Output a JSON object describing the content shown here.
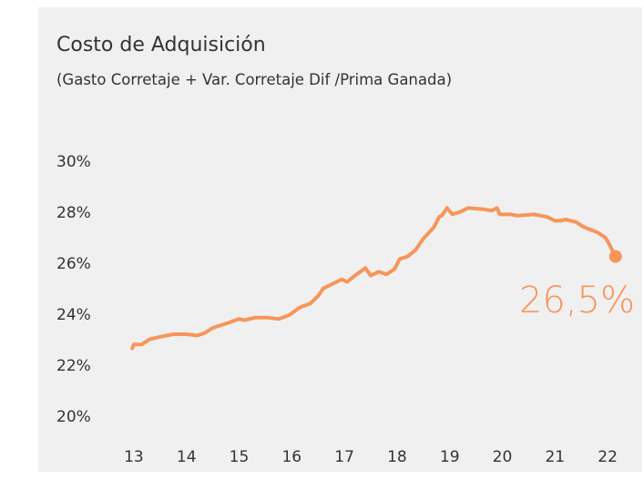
{
  "chart_data": {
    "type": "line",
    "title": "Costo de Adquisición",
    "subtitle": "(Gasto Corretaje + Var. Corretaje Dif /Prima Ganada)",
    "annotation": "26,5%",
    "x": [
      12.97,
      13.0,
      13.15,
      13.3,
      13.5,
      13.75,
      14.0,
      14.2,
      14.35,
      14.5,
      14.8,
      15.0,
      15.1,
      15.3,
      15.55,
      15.75,
      15.95,
      16.15,
      16.35,
      16.5,
      16.6,
      16.8,
      16.95,
      17.05,
      17.2,
      17.4,
      17.5,
      17.65,
      17.8,
      17.95,
      18.05,
      18.2,
      18.35,
      18.5,
      18.7,
      18.8,
      18.85,
      18.95,
      19.05,
      19.2,
      19.35,
      19.65,
      19.8,
      19.9,
      19.95,
      20.15,
      20.3,
      20.6,
      20.85,
      21.0,
      21.1,
      21.2,
      21.4,
      21.55,
      21.8,
      21.95,
      22.0,
      22.15
    ],
    "series": [
      {
        "color": "#f7955a",
        "values": [
          22.7,
          22.85,
          22.85,
          23.05,
          23.15,
          23.25,
          23.25,
          23.2,
          23.3,
          23.5,
          23.7,
          23.85,
          23.8,
          23.9,
          23.9,
          23.85,
          24.0,
          24.3,
          24.45,
          24.75,
          25.05,
          25.25,
          25.4,
          25.3,
          25.55,
          25.85,
          25.55,
          25.7,
          25.6,
          25.8,
          26.2,
          26.3,
          26.55,
          27.0,
          27.45,
          27.85,
          27.9,
          28.2,
          27.95,
          28.05,
          28.2,
          28.15,
          28.1,
          28.2,
          27.95,
          27.95,
          27.9,
          27.95,
          27.85,
          27.7,
          27.7,
          27.75,
          27.65,
          27.45,
          27.25,
          27.05,
          26.9,
          26.3
        ]
      }
    ],
    "xlim": [
      12.5,
      22.5
    ],
    "xticks": [
      13,
      14,
      15,
      16,
      17,
      18,
      19,
      20,
      21,
      22
    ],
    "ylim": [
      19,
      31
    ],
    "yticks": [
      {
        "value": 20,
        "label": "20%"
      },
      {
        "value": 22,
        "label": "22%"
      },
      {
        "value": 24,
        "label": "24%"
      },
      {
        "value": 26,
        "label": "26%"
      },
      {
        "value": 28,
        "label": "28%"
      },
      {
        "value": 30,
        "label": "30%"
      }
    ],
    "grid": false
  }
}
